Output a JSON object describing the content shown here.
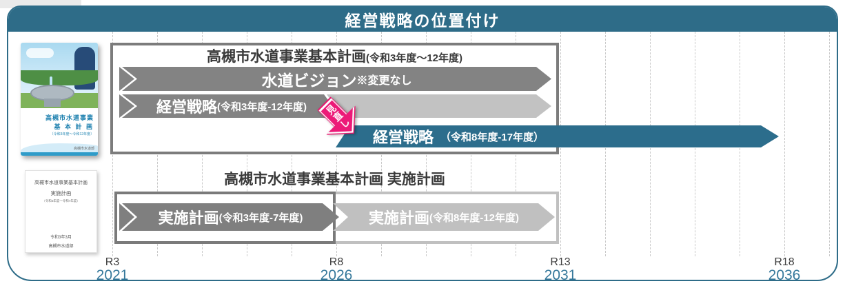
{
  "header": {
    "title": "経営戦略の位置付け"
  },
  "colors": {
    "teal_header": "#2E6C88",
    "teal_arrow": "#2C6D8C",
    "dark_gray_bar": "#838383",
    "light_gray_bar": "#C2C2C2",
    "box_border_dark": "#7C7C7C",
    "box_border_light": "#C0C0C0",
    "badge_pink": "#EC1A78",
    "year_text": "#35789B",
    "grid_line": "#C8C8C8"
  },
  "books": {
    "basic_plan_cover": {
      "title_line1": "高槻市水道事業",
      "title_line2": "基 本 計 画",
      "note": "〔令和3年度～令和12年度〕",
      "publisher": "高槻市水道部"
    },
    "implementation_cover": {
      "line1": "高槻市水道事業基本計画",
      "line2": "実施計画",
      "line3": "（令和3年度～令和7年度）",
      "line4": "令和3年3月",
      "line5": "高槻市水道部"
    }
  },
  "upper_box": {
    "title": "高槻市水道事業基本計画",
    "title_note": "(令和3年度～12年度)",
    "vision_bar": {
      "label": "水道ビジョン",
      "note": "※変更なし"
    },
    "strategy_bar": {
      "label": "経営戦略",
      "note": "(令和3年度-12年度)"
    }
  },
  "review_badge": {
    "label": "見直し"
  },
  "new_strategy_bar": {
    "label": "経営戦略",
    "note": "（令和8年度-17年度）"
  },
  "lower_box": {
    "title": "高槻市水道事業基本計画 実施計画",
    "bar_current": {
      "label": "実施計画",
      "note": "(令和3年度-7年度)"
    },
    "bar_next": {
      "label": "実施計画",
      "note": "(令和8年度-12年度)"
    }
  },
  "axis": {
    "ticks": [
      {
        "era": "R3",
        "year": "2021"
      },
      {
        "era": "R8",
        "year": "2026"
      },
      {
        "era": "R13",
        "year": "2031"
      },
      {
        "era": "R18",
        "year": "2036"
      }
    ]
  }
}
